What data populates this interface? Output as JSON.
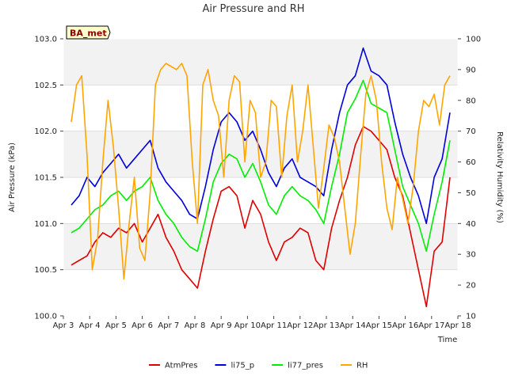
{
  "chart_data": {
    "type": "line",
    "title": "Air Pressure and RH",
    "xlabel": "Time",
    "ylabel": "Air Pressure (kPa)",
    "y2label": "Relativity Humidity (%)",
    "badge": "BA_met",
    "xlim": [
      0,
      15
    ],
    "ylim": [
      100.0,
      103.0
    ],
    "y2lim": [
      10,
      100
    ],
    "x_ticks": [
      "Apr 3",
      "Apr 4",
      "Apr 5",
      "Apr 6",
      "Apr 7",
      "Apr 8",
      "Apr 9",
      "Apr 10",
      "Apr 11",
      "Apr 12",
      "Apr 13",
      "Apr 14",
      "Apr 15",
      "Apr 16",
      "Apr 17",
      "Apr 18"
    ],
    "y_ticks": [
      "100.0",
      "100.5",
      "101.0",
      "101.5",
      "102.0",
      "102.5",
      "103.0"
    ],
    "y2_ticks": [
      "10",
      "20",
      "30",
      "40",
      "50",
      "60",
      "70",
      "80",
      "90",
      "100"
    ],
    "grid": "horizontal bands",
    "legend_position": "bottom",
    "series": [
      {
        "name": "AtmPres",
        "color": "#e00000",
        "axis": "left",
        "x": [
          0.3,
          0.6,
          0.9,
          1.2,
          1.5,
          1.8,
          2.1,
          2.4,
          2.7,
          3.0,
          3.3,
          3.6,
          3.9,
          4.2,
          4.5,
          4.8,
          5.1,
          5.4,
          5.7,
          6.0,
          6.3,
          6.6,
          6.9,
          7.2,
          7.5,
          7.8,
          8.1,
          8.4,
          8.7,
          9.0,
          9.3,
          9.6,
          9.9,
          10.2,
          10.5,
          10.8,
          11.1,
          11.4,
          11.7,
          12.0,
          12.3,
          12.6,
          12.9,
          13.2,
          13.5,
          13.8,
          14.1,
          14.4,
          14.7
        ],
        "y": [
          100.55,
          100.6,
          100.65,
          100.8,
          100.9,
          100.85,
          100.95,
          100.9,
          101.0,
          100.8,
          100.95,
          101.1,
          100.85,
          100.7,
          100.5,
          100.4,
          100.3,
          100.7,
          101.05,
          101.35,
          101.4,
          101.3,
          100.95,
          101.25,
          101.1,
          100.8,
          100.6,
          100.8,
          100.85,
          100.95,
          100.9,
          100.6,
          100.5,
          100.95,
          101.25,
          101.5,
          101.85,
          102.05,
          102.0,
          101.9,
          101.8,
          101.5,
          101.3,
          100.9,
          100.5,
          100.1,
          100.7,
          100.8,
          101.5
        ]
      },
      {
        "name": "li75_p",
        "color": "#0000dd",
        "axis": "left",
        "x": [
          0.3,
          0.6,
          0.9,
          1.2,
          1.5,
          1.8,
          2.1,
          2.4,
          2.7,
          3.0,
          3.3,
          3.6,
          3.9,
          4.2,
          4.5,
          4.8,
          5.1,
          5.4,
          5.7,
          6.0,
          6.3,
          6.6,
          6.9,
          7.2,
          7.5,
          7.8,
          8.1,
          8.4,
          8.7,
          9.0,
          9.3,
          9.6,
          9.9,
          10.2,
          10.5,
          10.8,
          11.1,
          11.4,
          11.7,
          12.0,
          12.3,
          12.6,
          12.9,
          13.2,
          13.5,
          13.8,
          14.1,
          14.4,
          14.7
        ],
        "y": [
          101.2,
          101.3,
          101.5,
          101.4,
          101.55,
          101.65,
          101.75,
          101.6,
          101.7,
          101.8,
          101.9,
          101.6,
          101.45,
          101.35,
          101.25,
          101.1,
          101.05,
          101.4,
          101.8,
          102.1,
          102.2,
          102.1,
          101.9,
          102.0,
          101.8,
          101.55,
          101.4,
          101.6,
          101.7,
          101.5,
          101.45,
          101.4,
          101.3,
          101.8,
          102.2,
          102.5,
          102.6,
          102.9,
          102.65,
          102.6,
          102.5,
          102.1,
          101.75,
          101.5,
          101.3,
          101.0,
          101.5,
          101.7,
          102.2
        ]
      },
      {
        "name": "li77_pres",
        "color": "#00ee00",
        "axis": "left",
        "x": [
          0.3,
          0.6,
          0.9,
          1.2,
          1.5,
          1.8,
          2.1,
          2.4,
          2.7,
          3.0,
          3.3,
          3.6,
          3.9,
          4.2,
          4.5,
          4.8,
          5.1,
          5.4,
          5.7,
          6.0,
          6.3,
          6.6,
          6.9,
          7.2,
          7.5,
          7.8,
          8.1,
          8.4,
          8.7,
          9.0,
          9.3,
          9.6,
          9.9,
          10.2,
          10.5,
          10.8,
          11.1,
          11.4,
          11.7,
          12.0,
          12.3,
          12.6,
          12.9,
          13.2,
          13.5,
          13.8,
          14.1,
          14.4,
          14.7
        ],
        "y": [
          100.9,
          100.95,
          101.05,
          101.15,
          101.2,
          101.3,
          101.35,
          101.25,
          101.35,
          101.4,
          101.5,
          101.25,
          101.1,
          101.0,
          100.85,
          100.75,
          100.7,
          101.05,
          101.45,
          101.65,
          101.75,
          101.7,
          101.5,
          101.65,
          101.45,
          101.2,
          101.1,
          101.3,
          101.4,
          101.3,
          101.25,
          101.15,
          101.0,
          101.4,
          101.75,
          102.2,
          102.35,
          102.55,
          102.3,
          102.25,
          102.2,
          101.8,
          101.4,
          101.2,
          101.0,
          100.7,
          101.1,
          101.45,
          101.9
        ]
      },
      {
        "name": "RH",
        "color": "#ffa500",
        "axis": "right",
        "x": [
          0.3,
          0.5,
          0.7,
          0.9,
          1.1,
          1.3,
          1.5,
          1.7,
          1.9,
          2.1,
          2.3,
          2.5,
          2.7,
          2.9,
          3.1,
          3.3,
          3.5,
          3.7,
          3.9,
          4.1,
          4.3,
          4.5,
          4.7,
          4.9,
          5.1,
          5.3,
          5.5,
          5.7,
          5.9,
          6.1,
          6.3,
          6.5,
          6.7,
          6.9,
          7.1,
          7.3,
          7.5,
          7.7,
          7.9,
          8.1,
          8.3,
          8.5,
          8.7,
          8.9,
          9.1,
          9.3,
          9.5,
          9.7,
          9.9,
          10.1,
          10.3,
          10.5,
          10.7,
          10.9,
          11.1,
          11.3,
          11.5,
          11.7,
          11.9,
          12.1,
          12.3,
          12.5,
          12.7,
          12.9,
          13.1,
          13.3,
          13.5,
          13.7,
          13.9,
          14.1,
          14.3,
          14.5,
          14.7
        ],
        "y": [
          73,
          85,
          88,
          62,
          25,
          35,
          60,
          80,
          65,
          45,
          22,
          40,
          55,
          32,
          28,
          50,
          85,
          90,
          92,
          91,
          90,
          92,
          88,
          60,
          40,
          85,
          90,
          80,
          75,
          55,
          80,
          88,
          86,
          60,
          80,
          76,
          55,
          60,
          80,
          78,
          55,
          75,
          85,
          60,
          70,
          85,
          65,
          45,
          58,
          72,
          68,
          60,
          45,
          30,
          40,
          62,
          82,
          88,
          80,
          60,
          45,
          38,
          55,
          48,
          40,
          52,
          70,
          80,
          78,
          82,
          72,
          85,
          88
        ]
      }
    ]
  }
}
